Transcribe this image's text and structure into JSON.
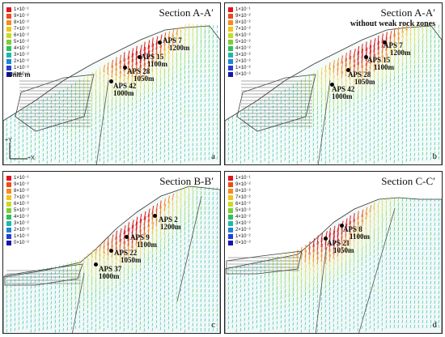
{
  "legend": {
    "labels": [
      "1×10⁻¹",
      "9×10⁻²",
      "8×10⁻²",
      "7×10⁻²",
      "6×10⁻²",
      "5×10⁻²",
      "4×10⁻²",
      "3×10⁻²",
      "2×10⁻²",
      "1×10⁻²",
      "0×10⁻²"
    ],
    "colors": [
      "#e0141c",
      "#ef4a1c",
      "#f78a1c",
      "#f2c41e",
      "#c8dc22",
      "#7ccf30",
      "#2fc15a",
      "#1fb8a8",
      "#1c86d8",
      "#1f3fd8",
      "#1414b0"
    ],
    "unit": "Unit: m"
  },
  "panels": [
    {
      "title": "Section A-A′",
      "subtitle": "",
      "letter": "a",
      "axes": {
        "y": "+Y",
        "x": "+X"
      },
      "points": [
        {
          "name": "APS 7",
          "elev": "1200m"
        },
        {
          "name": "APS 15",
          "elev": "1100m"
        },
        {
          "name": "APS 28",
          "elev": "1050m"
        },
        {
          "name": "APS 42",
          "elev": "1000m"
        }
      ]
    },
    {
      "title": "Section A-A′",
      "subtitle": "without weak rock zones",
      "letter": "b",
      "points": [
        {
          "name": "APS 7",
          "elev": "1200m"
        },
        {
          "name": "APS 15",
          "elev": "1100m"
        },
        {
          "name": "APS 28",
          "elev": "1050m"
        },
        {
          "name": "APS 42",
          "elev": "1000m"
        }
      ]
    },
    {
      "title": "Section B-B′",
      "subtitle": "",
      "letter": "c",
      "points": [
        {
          "name": "APS 2",
          "elev": "1200m"
        },
        {
          "name": "APS 9",
          "elev": "1100m"
        },
        {
          "name": "APS 22",
          "elev": "1050m"
        },
        {
          "name": "APS 37",
          "elev": "1000m"
        }
      ]
    },
    {
      "title": "Section C-C′",
      "subtitle": "",
      "letter": "d",
      "points": [
        {
          "name": "APS 8",
          "elev": "1100m"
        },
        {
          "name": "APS 21",
          "elev": "1050m"
        }
      ]
    }
  ]
}
